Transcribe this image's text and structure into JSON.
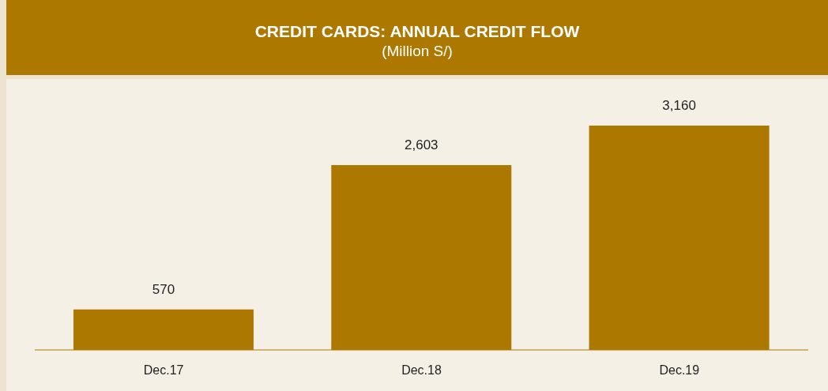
{
  "chart_data": {
    "type": "bar",
    "title": "CREDIT CARDS: ANNUAL CREDIT FLOW",
    "subtitle": "(Million S/)",
    "categories": [
      "Dec.17",
      "Dec.18",
      "Dec.19"
    ],
    "values": [
      570,
      2603,
      3160
    ],
    "color": "#ad7800",
    "value_labels": [
      "570",
      "2,603",
      "3,160"
    ],
    "tick_labels": "x"
  }
}
